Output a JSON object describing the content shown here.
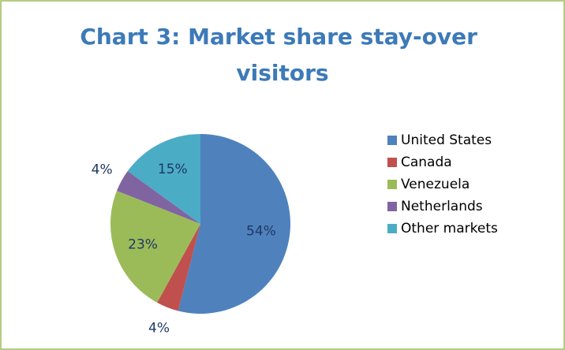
{
  "chart_data": {
    "type": "pie",
    "title": "Chart 3: Market share stay-over visitors",
    "categories": [
      "United States",
      "Canada",
      "Venezuela",
      "Netherlands",
      "Other markets"
    ],
    "values": [
      54,
      4,
      23,
      4,
      15
    ],
    "value_labels": [
      "54%",
      "4%",
      "23%",
      "4%",
      "15%"
    ],
    "colors": [
      "#4F81BD",
      "#C0504D",
      "#9BBB59",
      "#8064A2",
      "#4BACC6"
    ],
    "legend": "right"
  }
}
